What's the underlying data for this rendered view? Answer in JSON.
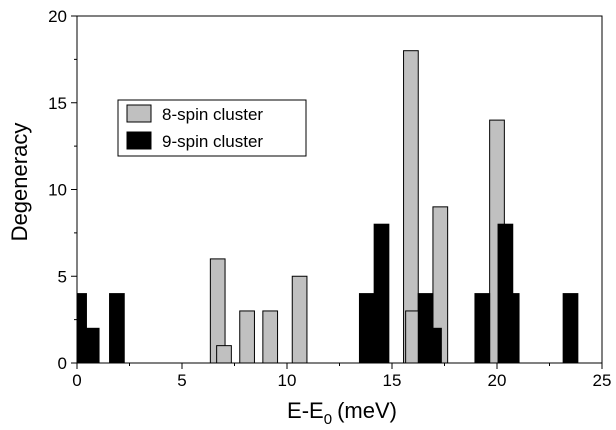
{
  "chart_data": {
    "type": "bar",
    "xlabel": "E-E",
    "xlabel_subscript": "0",
    "xlabel_unit": "(meV)",
    "ylabel": "Degeneracy",
    "xlim": [
      0,
      25
    ],
    "ylim": [
      0,
      20
    ],
    "x_ticks": [
      "0",
      "5",
      "10",
      "15",
      "20",
      "25"
    ],
    "y_ticks": [
      "0",
      "5",
      "10",
      "15",
      "20"
    ],
    "x_tick_values": [
      0,
      5,
      10,
      15,
      20,
      25
    ],
    "y_tick_values": [
      0,
      5,
      10,
      15,
      20
    ],
    "bar_width": 0.7,
    "grid": false,
    "legend_position": "upper-left",
    "series": [
      {
        "name": "8-spin cluster",
        "color": "#c0c0c0",
        "x": [
          6.7,
          7.0,
          8.1,
          9.2,
          10.6,
          15.9,
          16.0,
          17.3,
          20.0
        ],
        "values": [
          6,
          1,
          3,
          3,
          5,
          18,
          3,
          9,
          14
        ]
      },
      {
        "name": "9-spin cluster",
        "color": "#000000",
        "x": [
          0.1,
          0.7,
          1.9,
          13.8,
          14.5,
          16.6,
          17.0,
          19.3,
          20.4,
          20.7,
          23.5
        ],
        "values": [
          4,
          2,
          4,
          4,
          8,
          4,
          2,
          4,
          8,
          4,
          4
        ]
      }
    ]
  }
}
